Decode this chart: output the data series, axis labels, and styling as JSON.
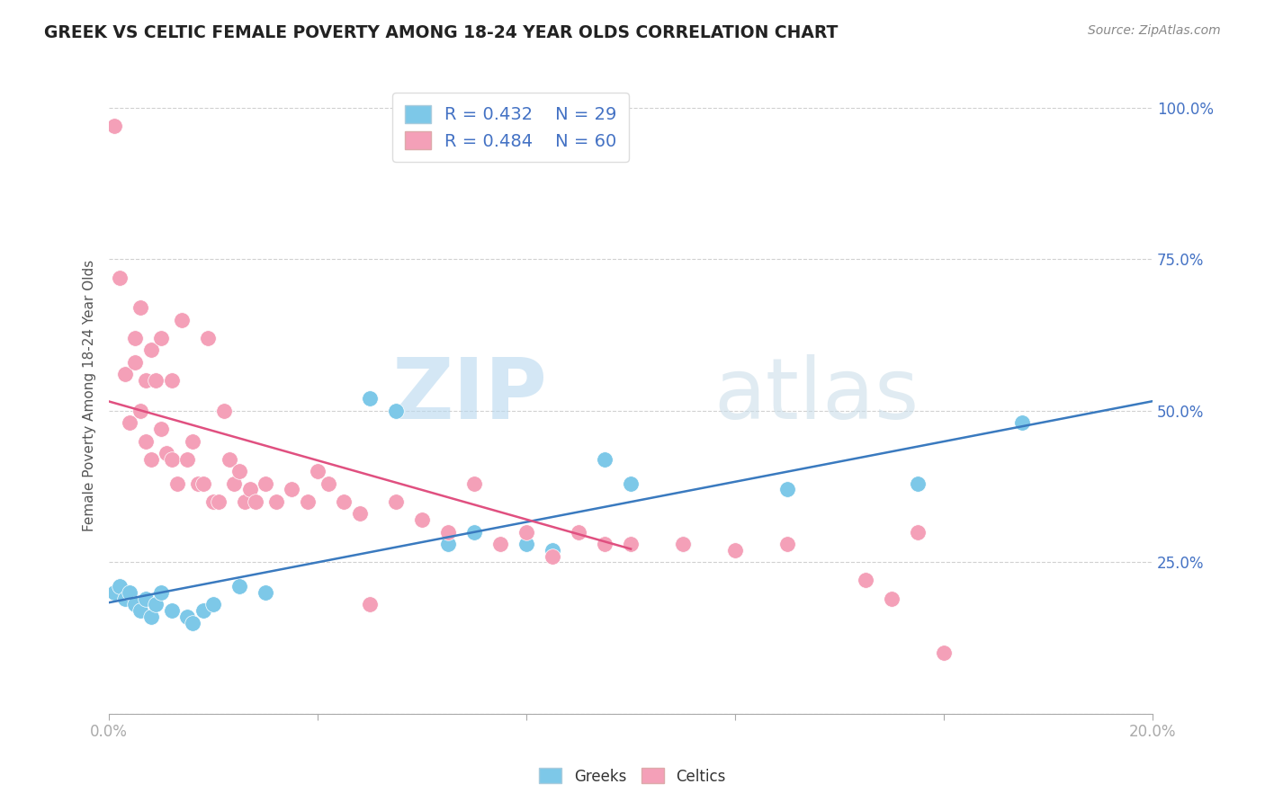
{
  "title": "GREEK VS CELTIC FEMALE POVERTY AMONG 18-24 YEAR OLDS CORRELATION CHART",
  "source": "Source: ZipAtlas.com",
  "ylabel": "Female Poverty Among 18-24 Year Olds",
  "xlim": [
    0.0,
    0.2
  ],
  "ylim": [
    0.0,
    1.05
  ],
  "xticks": [
    0.0,
    0.04,
    0.08,
    0.12,
    0.16,
    0.2
  ],
  "xtick_labels": [
    "0.0%",
    "",
    "",
    "",
    "",
    "20.0%"
  ],
  "ytick_labels": [
    "",
    "25.0%",
    "50.0%",
    "75.0%",
    "100.0%"
  ],
  "yticks": [
    0.0,
    0.25,
    0.5,
    0.75,
    1.0
  ],
  "legend_r_greek": "R = 0.432",
  "legend_n_greek": "N = 29",
  "legend_r_celtic": "R = 0.484",
  "legend_n_celtic": "N = 60",
  "greek_color": "#7dc8e8",
  "celtic_color": "#f4a0b8",
  "greek_line_color": "#3a7abf",
  "celtic_line_color": "#e05080",
  "watermark_zip": "ZIP",
  "watermark_atlas": "atlas",
  "background_color": "#ffffff",
  "greek_x": [
    0.001,
    0.002,
    0.003,
    0.004,
    0.005,
    0.006,
    0.007,
    0.008,
    0.009,
    0.01,
    0.012,
    0.015,
    0.016,
    0.018,
    0.02,
    0.025,
    0.03,
    0.05,
    0.055,
    0.065,
    0.07,
    0.08,
    0.085,
    0.095,
    0.1,
    0.11,
    0.13,
    0.155,
    0.175
  ],
  "greek_y": [
    0.2,
    0.21,
    0.19,
    0.2,
    0.18,
    0.17,
    0.19,
    0.16,
    0.18,
    0.2,
    0.17,
    0.16,
    0.15,
    0.17,
    0.18,
    0.21,
    0.2,
    0.52,
    0.5,
    0.28,
    0.3,
    0.28,
    0.27,
    0.42,
    0.38,
    0.28,
    0.37,
    0.38,
    0.48
  ],
  "celtic_x": [
    0.001,
    0.002,
    0.003,
    0.004,
    0.005,
    0.005,
    0.006,
    0.006,
    0.007,
    0.007,
    0.008,
    0.008,
    0.009,
    0.01,
    0.01,
    0.011,
    0.012,
    0.012,
    0.013,
    0.014,
    0.015,
    0.016,
    0.017,
    0.018,
    0.019,
    0.02,
    0.021,
    0.022,
    0.023,
    0.024,
    0.025,
    0.026,
    0.027,
    0.028,
    0.03,
    0.032,
    0.035,
    0.038,
    0.04,
    0.042,
    0.045,
    0.048,
    0.05,
    0.055,
    0.06,
    0.065,
    0.07,
    0.075,
    0.08,
    0.085,
    0.09,
    0.095,
    0.1,
    0.11,
    0.12,
    0.13,
    0.145,
    0.15,
    0.155,
    0.16
  ],
  "celtic_y": [
    0.97,
    0.72,
    0.56,
    0.48,
    0.62,
    0.58,
    0.67,
    0.5,
    0.55,
    0.45,
    0.6,
    0.42,
    0.55,
    0.62,
    0.47,
    0.43,
    0.55,
    0.42,
    0.38,
    0.65,
    0.42,
    0.45,
    0.38,
    0.38,
    0.62,
    0.35,
    0.35,
    0.5,
    0.42,
    0.38,
    0.4,
    0.35,
    0.37,
    0.35,
    0.38,
    0.35,
    0.37,
    0.35,
    0.4,
    0.38,
    0.35,
    0.33,
    0.18,
    0.35,
    0.32,
    0.3,
    0.38,
    0.28,
    0.3,
    0.26,
    0.3,
    0.28,
    0.28,
    0.28,
    0.27,
    0.28,
    0.22,
    0.19,
    0.3,
    0.1
  ]
}
